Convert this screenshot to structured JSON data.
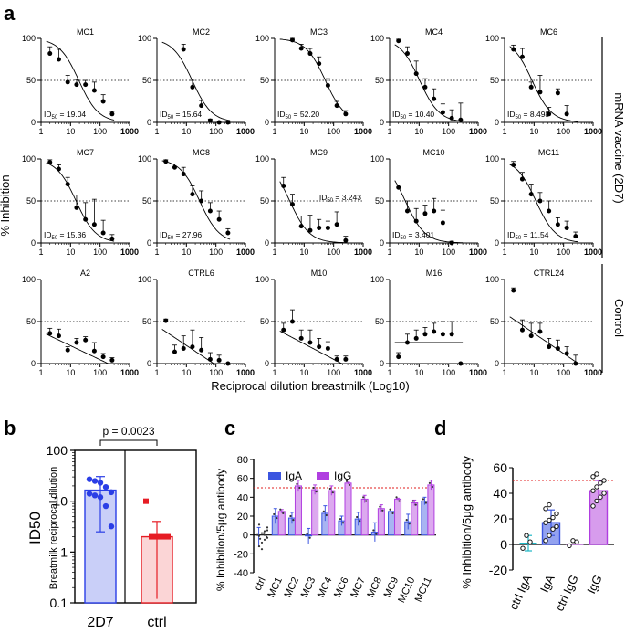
{
  "figure": {
    "panel_labels": [
      "a",
      "b",
      "c",
      "d"
    ],
    "a_y_label": "% Inhibition",
    "a_x_label": "Reciprocal dilution breastmilk (Log10)",
    "group_labels": [
      "mRNA vaccine (2D7)",
      "Control"
    ],
    "id50_prefix": "ID",
    "id50_sub": "50",
    "y_ticks": [
      "0",
      "50",
      "100"
    ],
    "x_ticks": [
      "1",
      "10",
      "100",
      "1000"
    ]
  },
  "chart_data": [
    {
      "type": "scatter",
      "panel": "a",
      "xscale": "log",
      "xlim": [
        1,
        1000
      ],
      "ylim": [
        0,
        100
      ],
      "threshold": 50,
      "subplots": [
        {
          "title": "MC1",
          "id50": "19.04",
          "x": [
            2,
            4,
            8,
            16,
            32,
            64,
            128,
            256
          ],
          "y": [
            82,
            75,
            48,
            45,
            45,
            38,
            25,
            10
          ],
          "err": [
            8,
            12,
            8,
            6,
            5,
            10,
            8,
            3
          ],
          "fit": "sigmoid",
          "fit_params": [
            19.04,
            100
          ]
        },
        {
          "title": "MC2",
          "id50": "15.64",
          "x": [
            8,
            16,
            32,
            64,
            128,
            256
          ],
          "y": [
            87,
            42,
            20,
            2,
            0,
            0
          ],
          "err": [
            6,
            8,
            6,
            2,
            0,
            0
          ],
          "fit": "sigmoid",
          "fit_params": [
            15.64,
            100
          ]
        },
        {
          "title": "MC3",
          "id50": "52.20",
          "x": [
            4,
            8,
            16,
            32,
            64,
            128,
            256
          ],
          "y": [
            98,
            88,
            82,
            70,
            44,
            20,
            10
          ],
          "err": [
            2,
            5,
            6,
            8,
            8,
            5,
            4
          ],
          "fit": "sigmoid",
          "fit_params": [
            52.2,
            100
          ]
        },
        {
          "title": "MC4",
          "id50": "10.40",
          "x": [
            2,
            4,
            8,
            16,
            32,
            64,
            128,
            256
          ],
          "y": [
            97,
            82,
            58,
            42,
            28,
            12,
            5,
            3
          ],
          "err": [
            2,
            8,
            15,
            10,
            12,
            10,
            10,
            20
          ],
          "fit": "sigmoid",
          "fit_params": [
            10.4,
            100
          ]
        },
        {
          "title": "MC6",
          "id50": "8.498",
          "x": [
            2,
            4,
            8,
            16,
            32,
            64,
            128
          ],
          "y": [
            87,
            78,
            42,
            36,
            10,
            35,
            10
          ],
          "err": [
            5,
            10,
            6,
            20,
            8,
            5,
            10
          ],
          "fit": "sigmoid",
          "fit_params": [
            8.498,
            100
          ]
        },
        {
          "title": "MC7",
          "id50": "15.36",
          "x": [
            2,
            4,
            8,
            16,
            32,
            64,
            128,
            256
          ],
          "y": [
            96,
            88,
            70,
            42,
            28,
            22,
            12,
            5
          ],
          "err": [
            3,
            5,
            8,
            15,
            20,
            30,
            15,
            5
          ],
          "fit": "sigmoid",
          "fit_params": [
            15.36,
            100
          ]
        },
        {
          "title": "MC8",
          "id50": "27.96",
          "x": [
            2,
            4,
            8,
            16,
            32,
            64,
            128,
            256
          ],
          "y": [
            97,
            90,
            82,
            58,
            50,
            38,
            28,
            12
          ],
          "err": [
            2,
            4,
            8,
            10,
            12,
            10,
            10,
            5
          ],
          "fit": "sigmoid",
          "fit_params": [
            27.96,
            100
          ]
        },
        {
          "title": "MC9",
          "id50": "3.243",
          "x": [
            2,
            4,
            8,
            16,
            32,
            64,
            128,
            256
          ],
          "y": [
            68,
            46,
            20,
            15,
            18,
            18,
            22,
            3
          ],
          "err": [
            10,
            12,
            12,
            18,
            10,
            8,
            15,
            5
          ],
          "fit": "sigmoid",
          "fit_params": [
            3.243,
            100
          ]
        },
        {
          "title": "MC10",
          "id50": "3.401",
          "x": [
            2,
            4,
            8,
            16,
            32,
            64,
            128
          ],
          "y": [
            66,
            38,
            26,
            35,
            38,
            24,
            0
          ],
          "err": [
            3,
            12,
            15,
            10,
            15,
            15,
            2
          ],
          "fit": "sigmoid",
          "fit_params": [
            3.401,
            100
          ]
        },
        {
          "title": "MC11",
          "id50": "11.54",
          "x": [
            2,
            4,
            8,
            16,
            32,
            64,
            128,
            256
          ],
          "y": [
            93,
            76,
            58,
            50,
            38,
            22,
            18,
            8
          ],
          "err": [
            4,
            8,
            12,
            10,
            12,
            8,
            8,
            5
          ],
          "fit": "sigmoid",
          "fit_params": [
            11.54,
            100
          ]
        }
      ]
    },
    {
      "type": "scatter",
      "panel": "a-control",
      "xscale": "log",
      "xlim": [
        1,
        1000
      ],
      "ylim": [
        0,
        100
      ],
      "threshold": 50,
      "subplots": [
        {
          "title": "A2",
          "x": [
            2,
            4,
            8,
            16,
            32,
            64,
            128,
            256
          ],
          "y": [
            36,
            33,
            16,
            25,
            28,
            15,
            8,
            4
          ],
          "err": [
            6,
            8,
            4,
            5,
            4,
            10,
            4,
            3
          ],
          "fit": "decay",
          "fit_params": [
            38,
            1.1
          ]
        },
        {
          "title": "CTRL6",
          "x": [
            2,
            4,
            8,
            16,
            32,
            64,
            128,
            256
          ],
          "y": [
            51,
            14,
            18,
            20,
            16,
            5,
            4,
            0
          ],
          "err": [
            2,
            8,
            15,
            20,
            15,
            8,
            6,
            0
          ],
          "fit": "decay",
          "fit_params": [
            45,
            1.3
          ]
        },
        {
          "title": "M10",
          "x": [
            2,
            4,
            8,
            16,
            32,
            64,
            128,
            256
          ],
          "y": [
            40,
            50,
            30,
            25,
            20,
            18,
            5,
            5
          ],
          "err": [
            8,
            14,
            10,
            15,
            10,
            8,
            4,
            4
          ],
          "fit": "decay",
          "fit_params": [
            42,
            1.1
          ]
        },
        {
          "title": "M16",
          "x": [
            2,
            4,
            8,
            16,
            32,
            64,
            128,
            256
          ],
          "y": [
            8,
            25,
            30,
            35,
            38,
            35,
            35,
            0
          ],
          "err": [
            5,
            10,
            10,
            8,
            10,
            15,
            15,
            0
          ],
          "fit": "flat",
          "fit_params": [
            25
          ]
        },
        {
          "title": "CTRL24",
          "x": [
            2,
            4,
            8,
            16,
            32,
            64,
            128,
            256
          ],
          "y": [
            87,
            40,
            33,
            38,
            20,
            18,
            12,
            0
          ],
          "err": [
            3,
            12,
            15,
            10,
            10,
            10,
            8,
            10
          ],
          "fit": "decay",
          "fit_params": [
            60,
            1.0
          ]
        }
      ]
    },
    {
      "type": "bar",
      "panel": "b",
      "yscale": "log",
      "ylim": [
        0.1,
        100
      ],
      "title": "p = 0.0023",
      "ylabel_main": "ID50",
      "ylabel_sub": "Breatmilk reciprocal dilution",
      "categories": [
        "2D7",
        "ctrl"
      ],
      "values": [
        16.5,
        2
      ],
      "errors": [
        14,
        2
      ],
      "colors": [
        "#2a3ee6",
        "#e61c24"
      ],
      "points": [
        [
          27,
          25,
          23,
          19,
          15,
          14,
          13,
          12,
          8,
          3.2
        ],
        [
          10,
          2,
          2,
          2,
          2
        ]
      ],
      "y_ticks": [
        "0.1",
        "1",
        "10",
        "100"
      ]
    },
    {
      "type": "bar",
      "panel": "c",
      "ylim": [
        -40,
        80
      ],
      "threshold": 50,
      "ylabel": "% Inhibition/5μg antibody",
      "categories": [
        "ctrl",
        "MC1",
        "MC2",
        "MC3",
        "MC4",
        "MC6",
        "MC7",
        "MC8",
        "MC9",
        "MC10",
        "MC11"
      ],
      "series": [
        {
          "name": "IgA",
          "color": "#3b55e0",
          "values": [
            -2,
            20,
            18,
            -1,
            23,
            15,
            17,
            3,
            25,
            14,
            36
          ],
          "errors": [
            10,
            8,
            6,
            8,
            8,
            5,
            7,
            10,
            0,
            8,
            4
          ]
        },
        {
          "name": "IgG",
          "color": "#b03ee0",
          "values": [
            0,
            25,
            52,
            48,
            47,
            55,
            38,
            28,
            38,
            34,
            53
          ],
          "errors": [
            0,
            2,
            6,
            5,
            5,
            1,
            4,
            4,
            1,
            3,
            5
          ]
        }
      ],
      "y_ticks": [
        "-40",
        "-20",
        "0",
        "20",
        "40",
        "60",
        "80"
      ]
    },
    {
      "type": "bar",
      "panel": "d",
      "ylim": [
        -20,
        60
      ],
      "threshold": 50,
      "ylabel": "% Inhibition/5μg antibody",
      "categories": [
        "ctrl IgA",
        "IgA",
        "ctrl IgG",
        "IgG"
      ],
      "values": [
        1,
        17,
        0,
        42
      ],
      "errors": [
        6,
        10,
        0,
        8
      ],
      "colors": [
        "#1fb8c6",
        "#3b55e0",
        "#c86be6",
        "#b03ee0"
      ],
      "points": [
        [
          -3,
          7,
          2
        ],
        [
          3,
          7,
          12,
          14,
          17,
          19,
          21,
          24,
          28,
          31
        ],
        [
          -1,
          3,
          2
        ],
        [
          30,
          34,
          37,
          40,
          42,
          45,
          48,
          50,
          53,
          55
        ]
      ],
      "y_ticks": [
        "-20",
        "0",
        "20",
        "40",
        "60"
      ]
    }
  ]
}
